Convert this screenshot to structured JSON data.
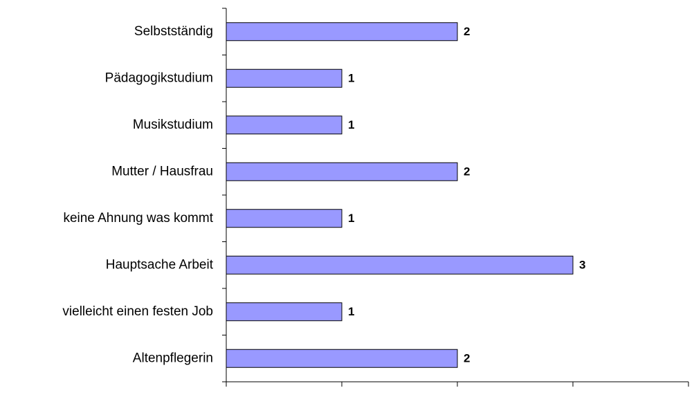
{
  "chart_data": {
    "type": "bar",
    "orientation": "horizontal",
    "categories": [
      "Selbstständig",
      "Pädagogikstudium",
      "Musikstudium",
      "Mutter / Hausfrau",
      "keine Ahnung was kommt",
      "Hauptsache Arbeit",
      "vielleicht einen festen Job",
      "Altenpflegerin"
    ],
    "values": [
      2,
      1,
      1,
      2,
      1,
      3,
      1,
      2
    ],
    "color": "#9999ff",
    "xlim": [
      0,
      4
    ],
    "xticks": [
      0,
      1,
      2,
      3,
      4
    ],
    "grid": false
  }
}
